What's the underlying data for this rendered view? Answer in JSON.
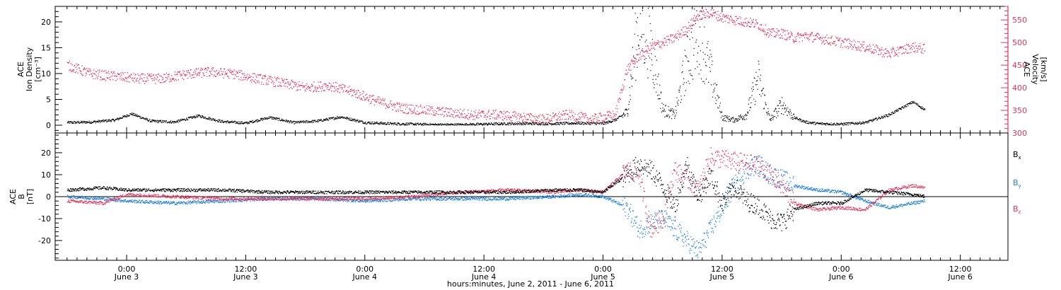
{
  "colors": {
    "density": "#000000",
    "velocity": "#e8305a",
    "bx": "#000000",
    "by": "#1a7fe0",
    "bz": "#e8305a",
    "frame": "#000000"
  },
  "chart_data": [
    {
      "type": "scatter",
      "panel": "plasma",
      "left_axis_label": [
        "ACE",
        "Ion Density",
        "[cm⁻³]"
      ],
      "right_axis_label": [
        "ACE",
        "Velocity",
        "[km/s]"
      ],
      "left_ylim": [
        -1.5,
        23
      ],
      "right_ylim": [
        300,
        580
      ],
      "left_ticks": [
        0,
        5,
        10,
        15,
        20
      ],
      "right_ticks": [
        300,
        350,
        400,
        450,
        500,
        550
      ],
      "series": [
        {
          "name": "Ion Density",
          "axis": "left",
          "x": [
            -0.25,
            -0.15,
            -0.05,
            0.02,
            0.1,
            0.2,
            0.3,
            0.4,
            0.5,
            0.6,
            0.7,
            0.8,
            0.9,
            1.0,
            1.1,
            1.2,
            1.3,
            1.4,
            1.5,
            1.6,
            1.7,
            1.8,
            1.9,
            2.0,
            2.05,
            2.1,
            2.15,
            2.2,
            2.25,
            2.3,
            2.35,
            2.4,
            2.45,
            2.5,
            2.55,
            2.6,
            2.65,
            2.7,
            2.75,
            2.8,
            2.85,
            2.9,
            3.0,
            3.1,
            3.2,
            3.3,
            3.35
          ],
          "y": [
            0.5,
            0.6,
            1.0,
            2.2,
            0.8,
            0.6,
            1.8,
            0.7,
            0.4,
            1.5,
            0.5,
            0.8,
            1.6,
            0.5,
            0.3,
            0.2,
            0.1,
            0.1,
            0.2,
            0.3,
            0.3,
            0.3,
            0.4,
            0.3,
            1.0,
            2.5,
            21.0,
            15.0,
            3.0,
            2.0,
            12.0,
            18.0,
            10.0,
            1.5,
            1.0,
            2.0,
            9.0,
            1.0,
            4.0,
            1.5,
            0.6,
            0.3,
            0.2,
            0.5,
            2.0,
            4.5,
            3.0
          ]
        },
        {
          "name": "Velocity",
          "axis": "right",
          "x": [
            -0.25,
            -0.15,
            -0.05,
            0.05,
            0.15,
            0.25,
            0.35,
            0.45,
            0.55,
            0.65,
            0.75,
            0.85,
            0.95,
            1.05,
            1.15,
            1.25,
            1.35,
            1.45,
            1.55,
            1.65,
            1.75,
            1.85,
            1.95,
            2.05,
            2.1,
            2.15,
            2.2,
            2.25,
            2.3,
            2.35,
            2.4,
            2.45,
            2.5,
            2.55,
            2.6,
            2.65,
            2.7,
            2.75,
            2.8,
            2.85,
            2.9,
            3.0,
            3.1,
            3.2,
            3.3,
            3.35
          ],
          "y": [
            450,
            430,
            425,
            420,
            420,
            430,
            435,
            430,
            420,
            410,
            400,
            405,
            390,
            370,
            355,
            350,
            345,
            340,
            340,
            335,
            330,
            340,
            330,
            340,
            440,
            470,
            490,
            500,
            510,
            530,
            560,
            565,
            555,
            550,
            545,
            540,
            520,
            520,
            510,
            515,
            510,
            500,
            490,
            475,
            490,
            485
          ]
        }
      ]
    },
    {
      "type": "scatter",
      "panel": "magnetic-field",
      "left_axis_label": [
        "ACE",
        "B",
        "[nT]"
      ],
      "ylim": [
        -29,
        29
      ],
      "left_ticks": [
        -20,
        -10,
        0,
        10,
        20
      ],
      "series": [
        {
          "name": "Bx",
          "x": [
            -0.25,
            -0.1,
            0.0,
            0.2,
            0.4,
            0.6,
            0.8,
            1.0,
            1.2,
            1.4,
            1.6,
            1.8,
            1.9,
            2.0,
            2.1,
            2.15,
            2.2,
            2.25,
            2.3,
            2.35,
            2.4,
            2.45,
            2.5,
            2.55,
            2.6,
            2.65,
            2.7,
            2.75,
            2.8,
            2.9,
            3.0,
            3.1,
            3.2,
            3.3,
            3.35
          ],
          "y": [
            3,
            4,
            3,
            3,
            3,
            2,
            2,
            2,
            2,
            2,
            2,
            3,
            3,
            2,
            10,
            15,
            12,
            5,
            -5,
            15,
            0,
            10,
            -3,
            5,
            -2,
            -4,
            -10,
            -12,
            -6,
            -3,
            -3,
            3,
            2,
            1,
            0
          ]
        },
        {
          "name": "By",
          "x": [
            -0.25,
            -0.1,
            0.0,
            0.2,
            0.4,
            0.6,
            0.8,
            1.0,
            1.2,
            1.4,
            1.6,
            1.8,
            1.9,
            2.0,
            2.1,
            2.15,
            2.2,
            2.25,
            2.3,
            2.35,
            2.4,
            2.45,
            2.5,
            2.55,
            2.6,
            2.65,
            2.7,
            2.75,
            2.8,
            2.9,
            3.0,
            3.1,
            3.2,
            3.3,
            3.35
          ],
          "y": [
            0,
            -1,
            -2,
            -3,
            -2,
            -1,
            -1,
            -2,
            -1,
            -1,
            -1,
            0,
            1,
            0,
            -5,
            -15,
            -12,
            -10,
            -15,
            -20,
            -25,
            -15,
            -5,
            5,
            12,
            15,
            10,
            8,
            5,
            3,
            2,
            -2,
            -5,
            -3,
            -2
          ]
        },
        {
          "name": "Bz",
          "x": [
            -0.25,
            -0.1,
            0.0,
            0.2,
            0.4,
            0.6,
            0.8,
            1.0,
            1.2,
            1.4,
            1.6,
            1.8,
            1.9,
            2.0,
            2.1,
            2.15,
            2.2,
            2.25,
            2.3,
            2.35,
            2.4,
            2.45,
            2.5,
            2.55,
            2.6,
            2.65,
            2.7,
            2.75,
            2.8,
            2.9,
            3.0,
            3.1,
            3.2,
            3.3,
            3.35
          ],
          "y": [
            -2,
            -3,
            1,
            0,
            -1,
            -1,
            -1,
            -1,
            0,
            2,
            3,
            2,
            3,
            2,
            12,
            10,
            -15,
            -10,
            12,
            8,
            3,
            18,
            17,
            16,
            15,
            14,
            10,
            5,
            -3,
            -6,
            -5,
            -6,
            3,
            5,
            4
          ]
        }
      ],
      "legend": [
        "Bx",
        "By",
        "Bz"
      ]
    }
  ],
  "xaxis": {
    "range_days": [
      -0.3,
      3.7
    ],
    "major_ticks": [
      0,
      0.5,
      1,
      1.5,
      2,
      2.5,
      3,
      3.5
    ],
    "time_labels": [
      "0:00",
      "12:00",
      "0:00",
      "12:00",
      "0:00",
      "12:00",
      "0:00",
      "12:00"
    ],
    "date_labels": [
      "June 3",
      "June 3",
      "June 4",
      "June 4",
      "June 5",
      "June 5",
      "June 6",
      "June 6"
    ],
    "title": "hours:minutes, June  2, 2011 - June  6, 2011"
  },
  "legend_labels": {
    "bx": "B",
    "bx_sub": "x",
    "by": "B",
    "by_sub": "y",
    "bz": "B",
    "bz_sub": "z"
  }
}
